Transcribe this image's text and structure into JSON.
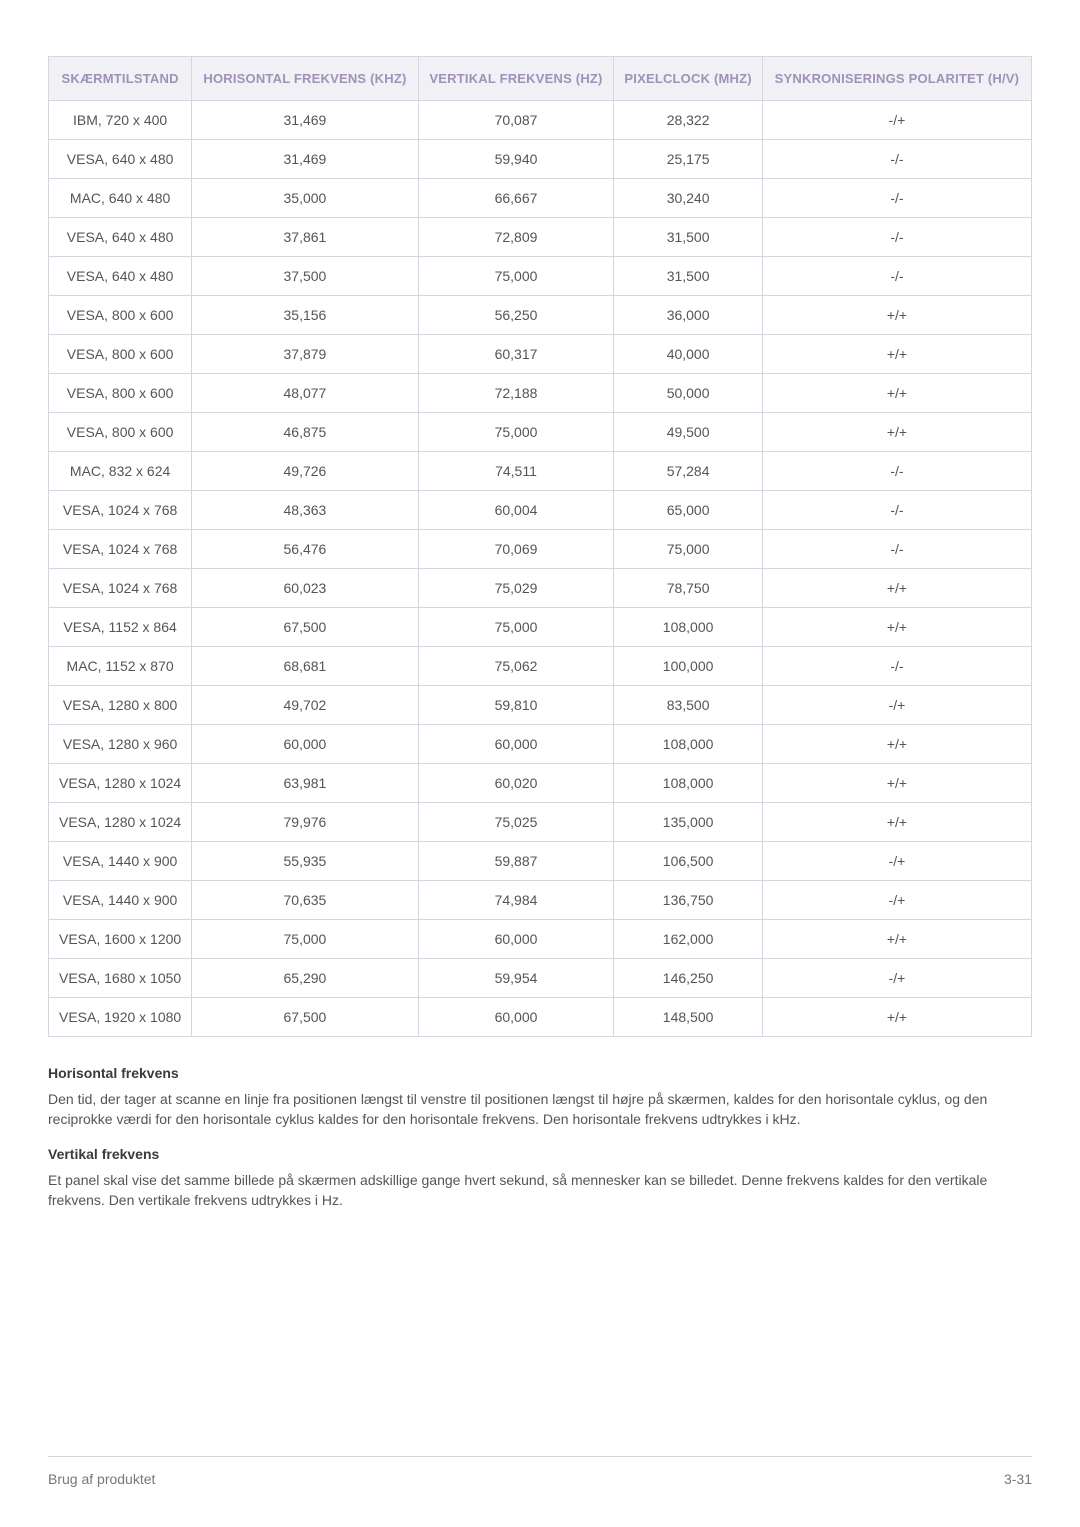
{
  "table": {
    "columns": [
      "SKÆRMTILSTAND",
      "HORISONTAL FREKVENS (KHZ)",
      "VERTIKAL FREKVENS (HZ)",
      "PIXELCLOCK (MHZ)",
      "SYNKRONISERINGS POLARITET (H/V)"
    ],
    "header_bg": "#f1f0f4",
    "header_color": "#9f91b8",
    "border_color": "#d8d5de",
    "rows": [
      [
        "IBM, 720 x 400",
        "31,469",
        "70,087",
        "28,322",
        "-/+"
      ],
      [
        "VESA, 640 x 480",
        "31,469",
        "59,940",
        "25,175",
        "-/-"
      ],
      [
        "MAC, 640 x 480",
        "35,000",
        "66,667",
        "30,240",
        "-/-"
      ],
      [
        "VESA, 640 x 480",
        "37,861",
        "72,809",
        "31,500",
        "-/-"
      ],
      [
        "VESA, 640 x 480",
        "37,500",
        "75,000",
        "31,500",
        "-/-"
      ],
      [
        "VESA, 800 x 600",
        "35,156",
        "56,250",
        "36,000",
        "+/+"
      ],
      [
        "VESA, 800 x 600",
        "37,879",
        "60,317",
        "40,000",
        "+/+"
      ],
      [
        "VESA, 800 x 600",
        "48,077",
        "72,188",
        "50,000",
        "+/+"
      ],
      [
        "VESA, 800 x 600",
        "46,875",
        "75,000",
        "49,500",
        "+/+"
      ],
      [
        "MAC, 832 x 624",
        "49,726",
        "74,511",
        "57,284",
        "-/-"
      ],
      [
        "VESA, 1024 x 768",
        "48,363",
        "60,004",
        "65,000",
        "-/-"
      ],
      [
        "VESA, 1024 x 768",
        "56,476",
        "70,069",
        "75,000",
        "-/-"
      ],
      [
        "VESA, 1024 x 768",
        "60,023",
        "75,029",
        "78,750",
        "+/+"
      ],
      [
        "VESA, 1152 x 864",
        "67,500",
        "75,000",
        "108,000",
        "+/+"
      ],
      [
        "MAC, 1152 x 870",
        "68,681",
        "75,062",
        "100,000",
        "-/-"
      ],
      [
        "VESA, 1280 x 800",
        "49,702",
        "59,810",
        "83,500",
        "-/+"
      ],
      [
        "VESA, 1280 x 960",
        "60,000",
        "60,000",
        "108,000",
        "+/+"
      ],
      [
        "VESA, 1280 x 1024",
        "63,981",
        "60,020",
        "108,000",
        "+/+"
      ],
      [
        "VESA, 1280 x 1024",
        "79,976",
        "75,025",
        "135,000",
        "+/+"
      ],
      [
        "VESA, 1440 x 900",
        "55,935",
        "59,887",
        "106,500",
        "-/+"
      ],
      [
        "VESA, 1440 x 900",
        "70,635",
        "74,984",
        "136,750",
        "-/+"
      ],
      [
        "VESA, 1600 x 1200",
        "75,000",
        "60,000",
        "162,000",
        "+/+"
      ],
      [
        "VESA, 1680 x 1050",
        "65,290",
        "59,954",
        "146,250",
        "-/+"
      ],
      [
        "VESA, 1920 x 1080",
        "67,500",
        "60,000",
        "148,500",
        "+/+"
      ]
    ]
  },
  "sections": {
    "horiz_heading": "Horisontal frekvens",
    "horiz_text": "Den tid, der tager at scanne en linje fra positionen længst til venstre til positionen længst til højre på skærmen, kaldes for den horisontale cyklus, og den reciprokke værdi for den horisontale cyklus kaldes for den horisontale frekvens. Den horisontale frekvens udtrykkes i kHz.",
    "vert_heading": "Vertikal frekvens",
    "vert_text": "Et panel skal vise det samme billede på skærmen adskillige gange hvert sekund, så mennesker kan se billedet. Denne frekvens kaldes for den vertikale frekvens. Den vertikale frekvens udtrykkes i Hz."
  },
  "footer": {
    "left": "Brug af produktet",
    "right": "3-31"
  }
}
